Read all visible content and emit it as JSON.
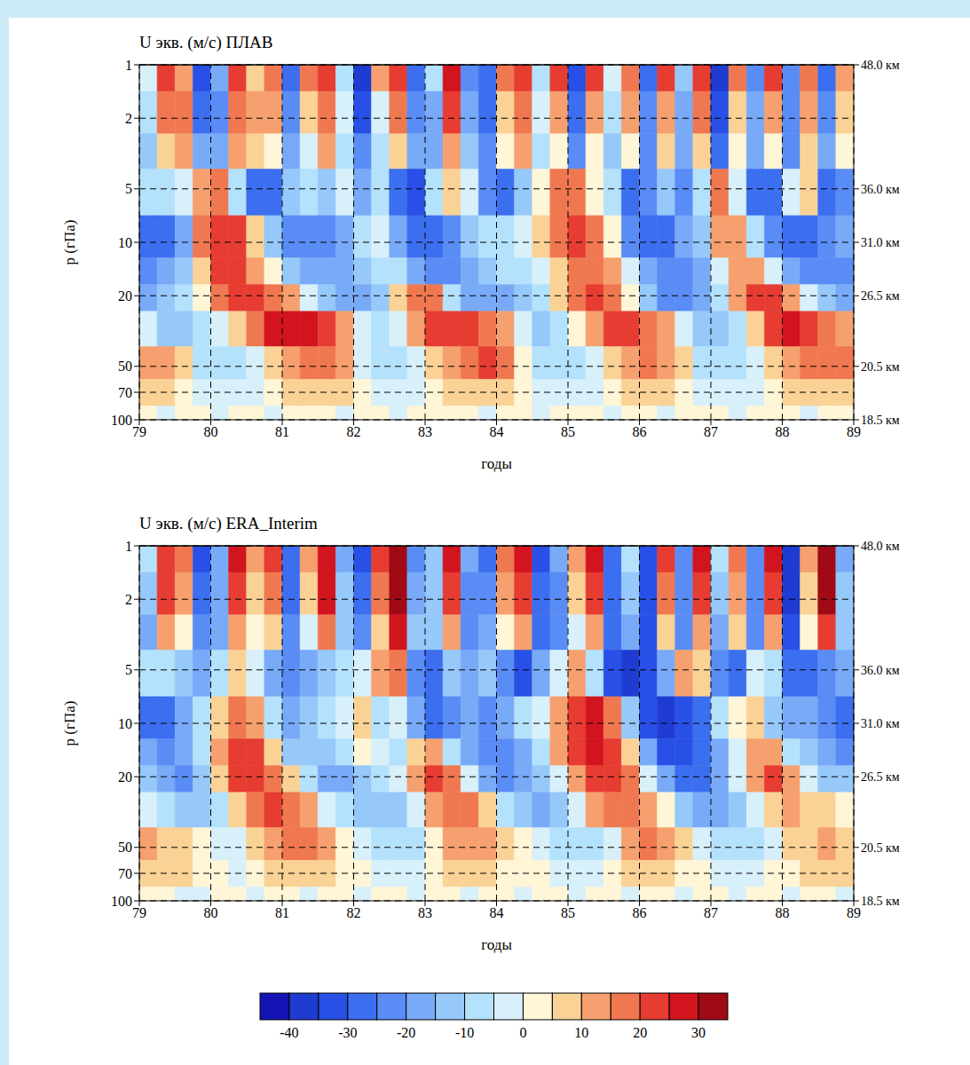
{
  "chart_data": [
    {
      "type": "heatmap",
      "title": "U экв. (м/с) ПЛАВ",
      "xlabel": "годы",
      "ylabel": "p (гПа)",
      "x": [
        79,
        79.25,
        79.5,
        79.75,
        80,
        80.25,
        80.5,
        80.75,
        81,
        81.25,
        81.5,
        81.75,
        82,
        82.25,
        82.5,
        82.75,
        83,
        83.25,
        83.5,
        83.75,
        84,
        84.25,
        84.5,
        84.75,
        85,
        85.25,
        85.5,
        85.75,
        86,
        86.25,
        86.5,
        86.75,
        87,
        87.25,
        87.5,
        87.75,
        88,
        88.25,
        88.5,
        88.75
      ],
      "y": [
        1,
        2,
        3,
        5,
        10,
        15,
        20,
        30,
        50,
        70,
        100
      ],
      "values": [
        [
          -5,
          20,
          10,
          -35,
          -20,
          20,
          5,
          15,
          -30,
          15,
          20,
          -10,
          -40,
          10,
          20,
          -30,
          -10,
          25,
          -25,
          -30,
          15,
          20,
          -10,
          20,
          -35,
          20,
          -5,
          15,
          -30,
          20,
          -15,
          20,
          -40,
          15,
          -25,
          20,
          -25,
          15,
          -30,
          10
        ],
        [
          -10,
          15,
          15,
          -30,
          -25,
          15,
          10,
          10,
          -25,
          5,
          15,
          -5,
          -35,
          -5,
          15,
          -25,
          -20,
          20,
          -20,
          -30,
          5,
          15,
          -5,
          10,
          -30,
          10,
          -10,
          10,
          -25,
          10,
          -20,
          15,
          -35,
          5,
          -20,
          10,
          -25,
          10,
          -25,
          5
        ],
        [
          -15,
          5,
          10,
          -20,
          -20,
          10,
          5,
          0,
          -20,
          -5,
          10,
          -10,
          -25,
          -10,
          5,
          -20,
          -20,
          10,
          -15,
          -25,
          0,
          10,
          -10,
          0,
          -25,
          0,
          -15,
          0,
          -25,
          5,
          -20,
          5,
          -30,
          0,
          -20,
          0,
          -25,
          5,
          -20,
          0
        ],
        [
          -10,
          -10,
          -5,
          10,
          15,
          -10,
          -30,
          -30,
          -15,
          -10,
          -15,
          -5,
          -20,
          -10,
          -30,
          -35,
          -10,
          5,
          -5,
          -25,
          -30,
          -15,
          0,
          15,
          15,
          0,
          -10,
          -30,
          -25,
          -15,
          -25,
          -10,
          15,
          -5,
          -30,
          -30,
          -5,
          5,
          -30,
          -25
        ],
        [
          -30,
          -30,
          -20,
          15,
          20,
          20,
          5,
          -15,
          -25,
          -25,
          -25,
          -20,
          -10,
          -5,
          -20,
          -30,
          -30,
          -25,
          -15,
          -10,
          -10,
          -5,
          5,
          15,
          20,
          15,
          0,
          -25,
          -30,
          -30,
          -20,
          -15,
          10,
          10,
          -10,
          -25,
          -30,
          -30,
          -25,
          -20
        ],
        [
          -25,
          -20,
          -15,
          5,
          20,
          20,
          10,
          0,
          -15,
          -20,
          -20,
          -20,
          -15,
          -10,
          -10,
          -20,
          -25,
          -25,
          -20,
          -15,
          -10,
          -10,
          -5,
          5,
          15,
          15,
          10,
          -5,
          -20,
          -25,
          -25,
          -20,
          -5,
          10,
          10,
          -5,
          -20,
          -25,
          -25,
          -25
        ],
        [
          -20,
          -15,
          -10,
          0,
          15,
          20,
          20,
          15,
          10,
          -5,
          -15,
          -20,
          -20,
          -15,
          5,
          15,
          15,
          -10,
          -20,
          -20,
          -20,
          -15,
          -10,
          5,
          15,
          20,
          15,
          0,
          -15,
          -25,
          -25,
          -20,
          -10,
          10,
          20,
          20,
          10,
          -5,
          -15,
          -20
        ],
        [
          -5,
          -15,
          -15,
          -10,
          -5,
          5,
          15,
          25,
          25,
          25,
          20,
          10,
          -5,
          -10,
          -5,
          10,
          20,
          20,
          20,
          15,
          10,
          -5,
          -15,
          -10,
          0,
          10,
          20,
          20,
          15,
          10,
          -5,
          -15,
          -15,
          -10,
          5,
          20,
          25,
          20,
          15,
          10
        ],
        [
          10,
          10,
          5,
          -10,
          -10,
          -10,
          -5,
          5,
          10,
          15,
          15,
          10,
          -5,
          -10,
          -10,
          -5,
          5,
          10,
          15,
          20,
          15,
          0,
          -10,
          -10,
          -10,
          -5,
          5,
          10,
          15,
          10,
          5,
          -10,
          -10,
          -10,
          -5,
          5,
          10,
          15,
          15,
          15
        ],
        [
          5,
          5,
          0,
          -5,
          -5,
          -5,
          -5,
          0,
          5,
          5,
          5,
          5,
          0,
          -5,
          -5,
          -5,
          0,
          5,
          5,
          5,
          5,
          0,
          -5,
          -5,
          -5,
          -5,
          0,
          5,
          5,
          5,
          0,
          -5,
          -5,
          -5,
          -5,
          0,
          5,
          5,
          5,
          5
        ],
        [
          0,
          -3,
          0,
          0,
          -3,
          0,
          0,
          -3,
          0,
          0,
          0,
          -3,
          0,
          0,
          -3,
          0,
          0,
          0,
          0,
          -3,
          0,
          0,
          -3,
          0,
          0,
          0,
          -3,
          0,
          0,
          -3,
          0,
          0,
          0,
          -3,
          0,
          0,
          0,
          -3,
          0,
          0
        ]
      ],
      "xlim": [
        79,
        89
      ],
      "xticks": [
        79,
        80,
        81,
        82,
        83,
        84,
        85,
        86,
        87,
        88,
        89
      ],
      "ylim": [
        1,
        100
      ],
      "yticks": [
        1,
        2,
        5,
        10,
        20,
        50,
        70,
        100
      ],
      "y2lim": [
        1,
        100
      ],
      "y2ticks": [
        {
          "value": 1,
          "label": "48.0 км"
        },
        {
          "value": 5,
          "label": "36.0 км"
        },
        {
          "value": 10,
          "label": "31.0 км"
        },
        {
          "value": 20,
          "label": "26.5 км"
        },
        {
          "value": 50,
          "label": "20.5 км"
        },
        {
          "value": 100,
          "label": "18.5 км"
        }
      ],
      "log": "y",
      "grid": true
    },
    {
      "type": "heatmap",
      "title": "U экв. (м/с) ERA_Interim",
      "xlabel": "годы",
      "ylabel": "p (гПа)",
      "x": [
        79,
        79.25,
        79.5,
        79.75,
        80,
        80.25,
        80.5,
        80.75,
        81,
        81.25,
        81.5,
        81.75,
        82,
        82.25,
        82.5,
        82.75,
        83,
        83.25,
        83.5,
        83.75,
        84,
        84.25,
        84.5,
        84.75,
        85,
        85.25,
        85.5,
        85.75,
        86,
        86.25,
        86.5,
        86.75,
        87,
        87.25,
        87.5,
        87.75,
        88,
        88.25,
        88.5,
        88.75
      ],
      "y": [
        1,
        2,
        3,
        5,
        10,
        15,
        20,
        30,
        50,
        70,
        100
      ],
      "values": [
        [
          -10,
          20,
          15,
          -35,
          -20,
          25,
          10,
          20,
          -30,
          10,
          25,
          -20,
          -35,
          20,
          30,
          -25,
          -15,
          25,
          -20,
          -30,
          15,
          25,
          -35,
          -20,
          10,
          25,
          -30,
          -10,
          -35,
          20,
          -25,
          25,
          -10,
          15,
          -25,
          25,
          -40,
          10,
          30,
          -20
        ],
        [
          -15,
          20,
          10,
          -30,
          -20,
          20,
          5,
          15,
          -30,
          5,
          25,
          -15,
          -30,
          15,
          30,
          -20,
          -15,
          20,
          -25,
          -25,
          10,
          20,
          -30,
          -25,
          5,
          20,
          -30,
          -15,
          -35,
          15,
          -25,
          20,
          -15,
          10,
          -25,
          20,
          -40,
          5,
          30,
          -15
        ],
        [
          -20,
          10,
          0,
          -25,
          -20,
          10,
          0,
          5,
          -25,
          -5,
          15,
          -15,
          -25,
          5,
          25,
          -15,
          -15,
          10,
          -25,
          -20,
          0,
          10,
          -30,
          -25,
          -5,
          10,
          -30,
          -20,
          -35,
          5,
          -25,
          10,
          -20,
          5,
          -25,
          10,
          -35,
          0,
          20,
          -15
        ],
        [
          -10,
          -10,
          -15,
          -20,
          -10,
          5,
          -5,
          -20,
          -25,
          -20,
          -15,
          -10,
          -5,
          10,
          15,
          -25,
          -30,
          -15,
          -20,
          -15,
          -25,
          -35,
          -20,
          -5,
          10,
          -10,
          -35,
          -40,
          -35,
          -20,
          10,
          5,
          -25,
          -30,
          -5,
          -10,
          -30,
          -30,
          -25,
          -20
        ],
        [
          -30,
          -30,
          -20,
          -10,
          5,
          15,
          10,
          -10,
          -20,
          -15,
          -10,
          -5,
          5,
          -10,
          -5,
          -20,
          -30,
          -25,
          -20,
          -25,
          -20,
          -10,
          -5,
          10,
          20,
          25,
          15,
          -15,
          -35,
          -40,
          -35,
          -30,
          -10,
          0,
          5,
          -15,
          -20,
          -20,
          -25,
          -30
        ],
        [
          -20,
          -25,
          -20,
          -10,
          10,
          20,
          20,
          5,
          -15,
          -15,
          -15,
          -10,
          0,
          -5,
          -10,
          5,
          10,
          -10,
          -20,
          -25,
          -25,
          -20,
          -10,
          10,
          20,
          25,
          20,
          5,
          -20,
          -35,
          -35,
          -30,
          -20,
          -5,
          10,
          10,
          -10,
          -15,
          -20,
          -25
        ],
        [
          -15,
          -20,
          -25,
          -15,
          5,
          20,
          20,
          15,
          5,
          -10,
          -20,
          -20,
          -15,
          -10,
          -5,
          10,
          20,
          15,
          -5,
          -20,
          -25,
          -20,
          -15,
          -5,
          10,
          20,
          20,
          15,
          -5,
          -20,
          -30,
          -30,
          -20,
          -5,
          10,
          20,
          10,
          -5,
          -15,
          -15
        ],
        [
          -5,
          -10,
          -15,
          -15,
          -10,
          5,
          15,
          20,
          15,
          10,
          -5,
          -10,
          -15,
          -15,
          -15,
          -5,
          10,
          15,
          15,
          5,
          -10,
          -15,
          -20,
          -15,
          -5,
          10,
          15,
          15,
          10,
          0,
          -15,
          -20,
          -20,
          -15,
          -5,
          5,
          10,
          5,
          5,
          0
        ],
        [
          10,
          5,
          5,
          0,
          -5,
          -5,
          5,
          10,
          15,
          15,
          10,
          0,
          -5,
          -10,
          -10,
          -10,
          0,
          10,
          10,
          10,
          5,
          0,
          -5,
          -10,
          -10,
          -10,
          -5,
          10,
          15,
          10,
          5,
          -5,
          -10,
          -10,
          -10,
          -5,
          5,
          5,
          10,
          5
        ],
        [
          5,
          5,
          5,
          0,
          0,
          -5,
          0,
          5,
          5,
          5,
          5,
          0,
          0,
          -5,
          -5,
          -5,
          0,
          5,
          5,
          5,
          0,
          0,
          0,
          -5,
          -5,
          -5,
          0,
          5,
          5,
          5,
          0,
          0,
          -5,
          -5,
          -5,
          0,
          0,
          5,
          5,
          5
        ],
        [
          0,
          0,
          -3,
          -3,
          0,
          0,
          -3,
          0,
          0,
          -3,
          0,
          0,
          -3,
          0,
          0,
          -3,
          0,
          0,
          -3,
          0,
          0,
          -3,
          0,
          0,
          -3,
          0,
          0,
          -3,
          0,
          0,
          -3,
          0,
          0,
          -3,
          0,
          0,
          -3,
          0,
          0,
          -3
        ]
      ],
      "xlim": [
        79,
        89
      ],
      "xticks": [
        79,
        80,
        81,
        82,
        83,
        84,
        85,
        86,
        87,
        88,
        89
      ],
      "ylim": [
        1,
        100
      ],
      "yticks": [
        1,
        2,
        5,
        10,
        20,
        50,
        70,
        100
      ],
      "y2lim": [
        1,
        100
      ],
      "y2ticks": [
        {
          "value": 1,
          "label": "48.0 км"
        },
        {
          "value": 5,
          "label": "36.0 км"
        },
        {
          "value": 10,
          "label": "31.0 км"
        },
        {
          "value": 20,
          "label": "26.5 км"
        },
        {
          "value": 50,
          "label": "20.5 км"
        },
        {
          "value": 100,
          "label": "18.5 км"
        }
      ],
      "log": "y",
      "grid": true,
      "colorbar": {
        "range": [
          -45,
          35
        ],
        "levels": [
          -40,
          -35,
          -30,
          -25,
          -20,
          -15,
          -10,
          -5,
          0,
          5,
          10,
          15,
          20,
          25,
          30
        ],
        "ticks": [
          -40,
          -30,
          -20,
          -10,
          0,
          10,
          20,
          30
        ],
        "colors": [
          "#1414b4",
          "#1e3cd2",
          "#2850e6",
          "#3c6ef0",
          "#5a8cf5",
          "#78aaf8",
          "#96c8fa",
          "#b4e1fc",
          "#d7f0fa",
          "#fff5d7",
          "#fad296",
          "#f5a06e",
          "#f07850",
          "#e63c32",
          "#d2141e",
          "#a00a14"
        ]
      }
    }
  ]
}
